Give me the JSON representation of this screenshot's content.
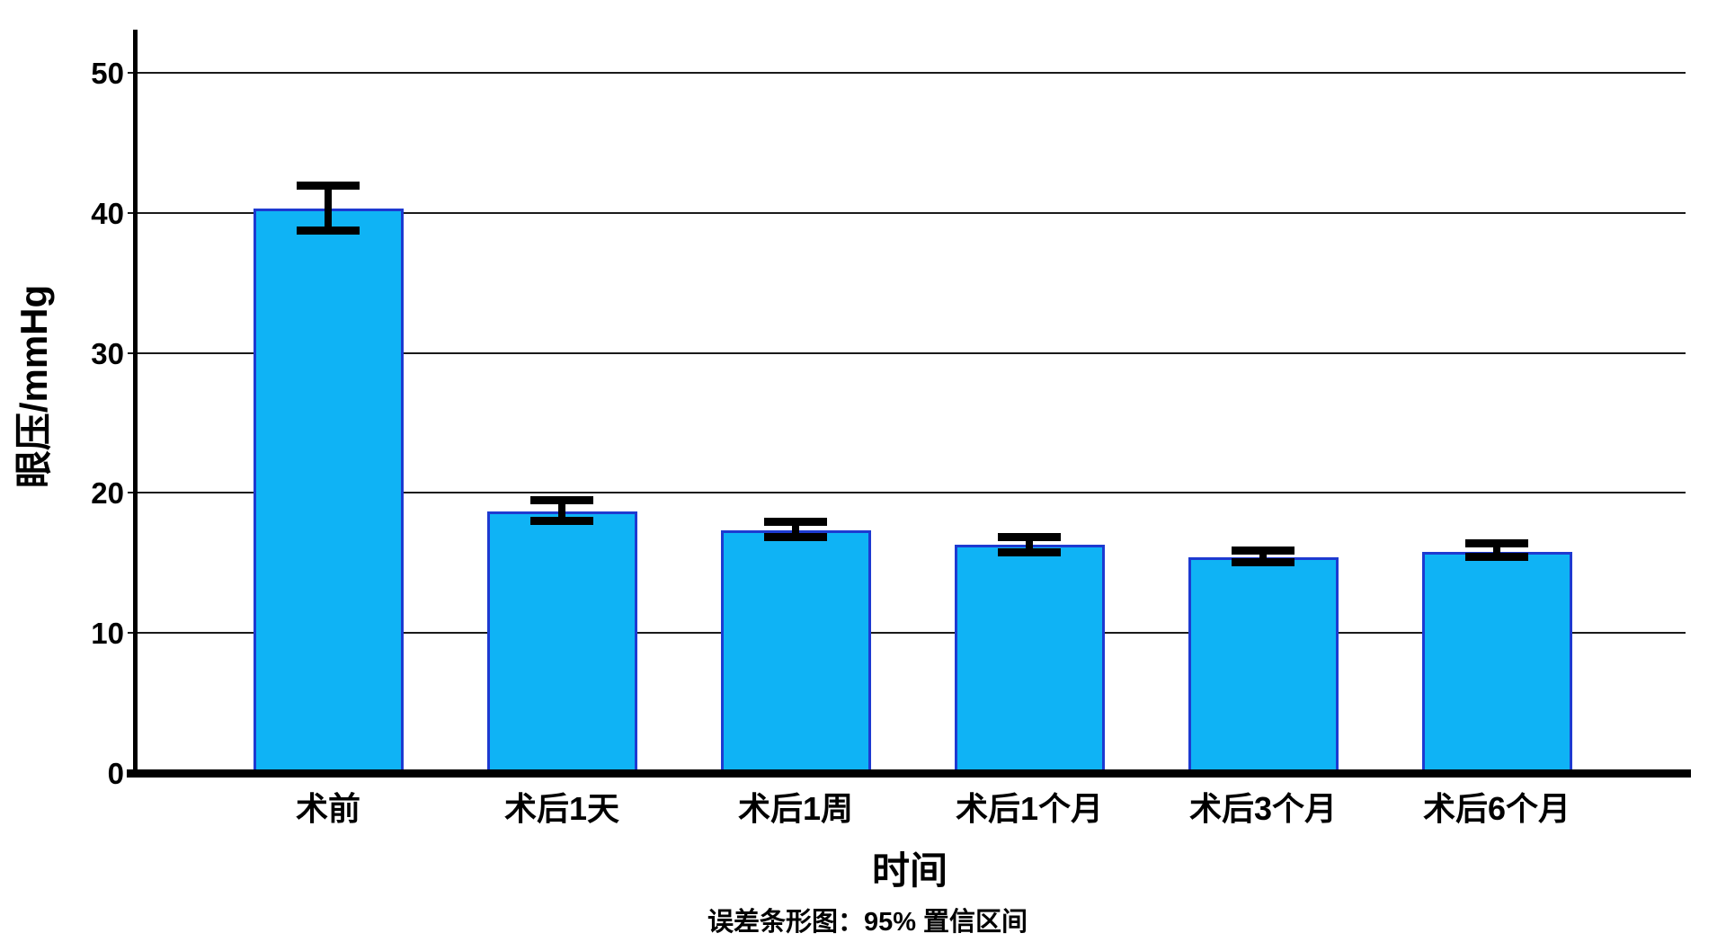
{
  "chart_data": {
    "type": "bar",
    "title": "",
    "categories": [
      "术前",
      "术后1天",
      "术后1周",
      "术后1个月",
      "术后3个月",
      "术后6个月"
    ],
    "values": [
      40.3,
      18.7,
      17.3,
      16.3,
      15.4,
      15.8
    ],
    "error_low": [
      38.7,
      18.0,
      16.8,
      15.7,
      15.0,
      15.4
    ],
    "error_high": [
      42.0,
      19.5,
      18.0,
      16.9,
      15.9,
      16.4
    ],
    "xlabel": "时间",
    "ylabel": "眼压/mmHg",
    "y_ticks": [
      0,
      10,
      20,
      30,
      40,
      50
    ],
    "ylim": [
      0,
      53
    ],
    "grid": true,
    "legend": "none",
    "caption": "误差条形图：95% 置信区间",
    "error_bars": "95% confidence interval",
    "colors": {
      "bar_fill": "#0FB3F5",
      "bar_border": "#1D3AD1",
      "error_bar": "#000000",
      "grid_line": "#1A1A1A",
      "axis": "#000000",
      "text": "#000000",
      "background": "#FFFFFF"
    }
  }
}
